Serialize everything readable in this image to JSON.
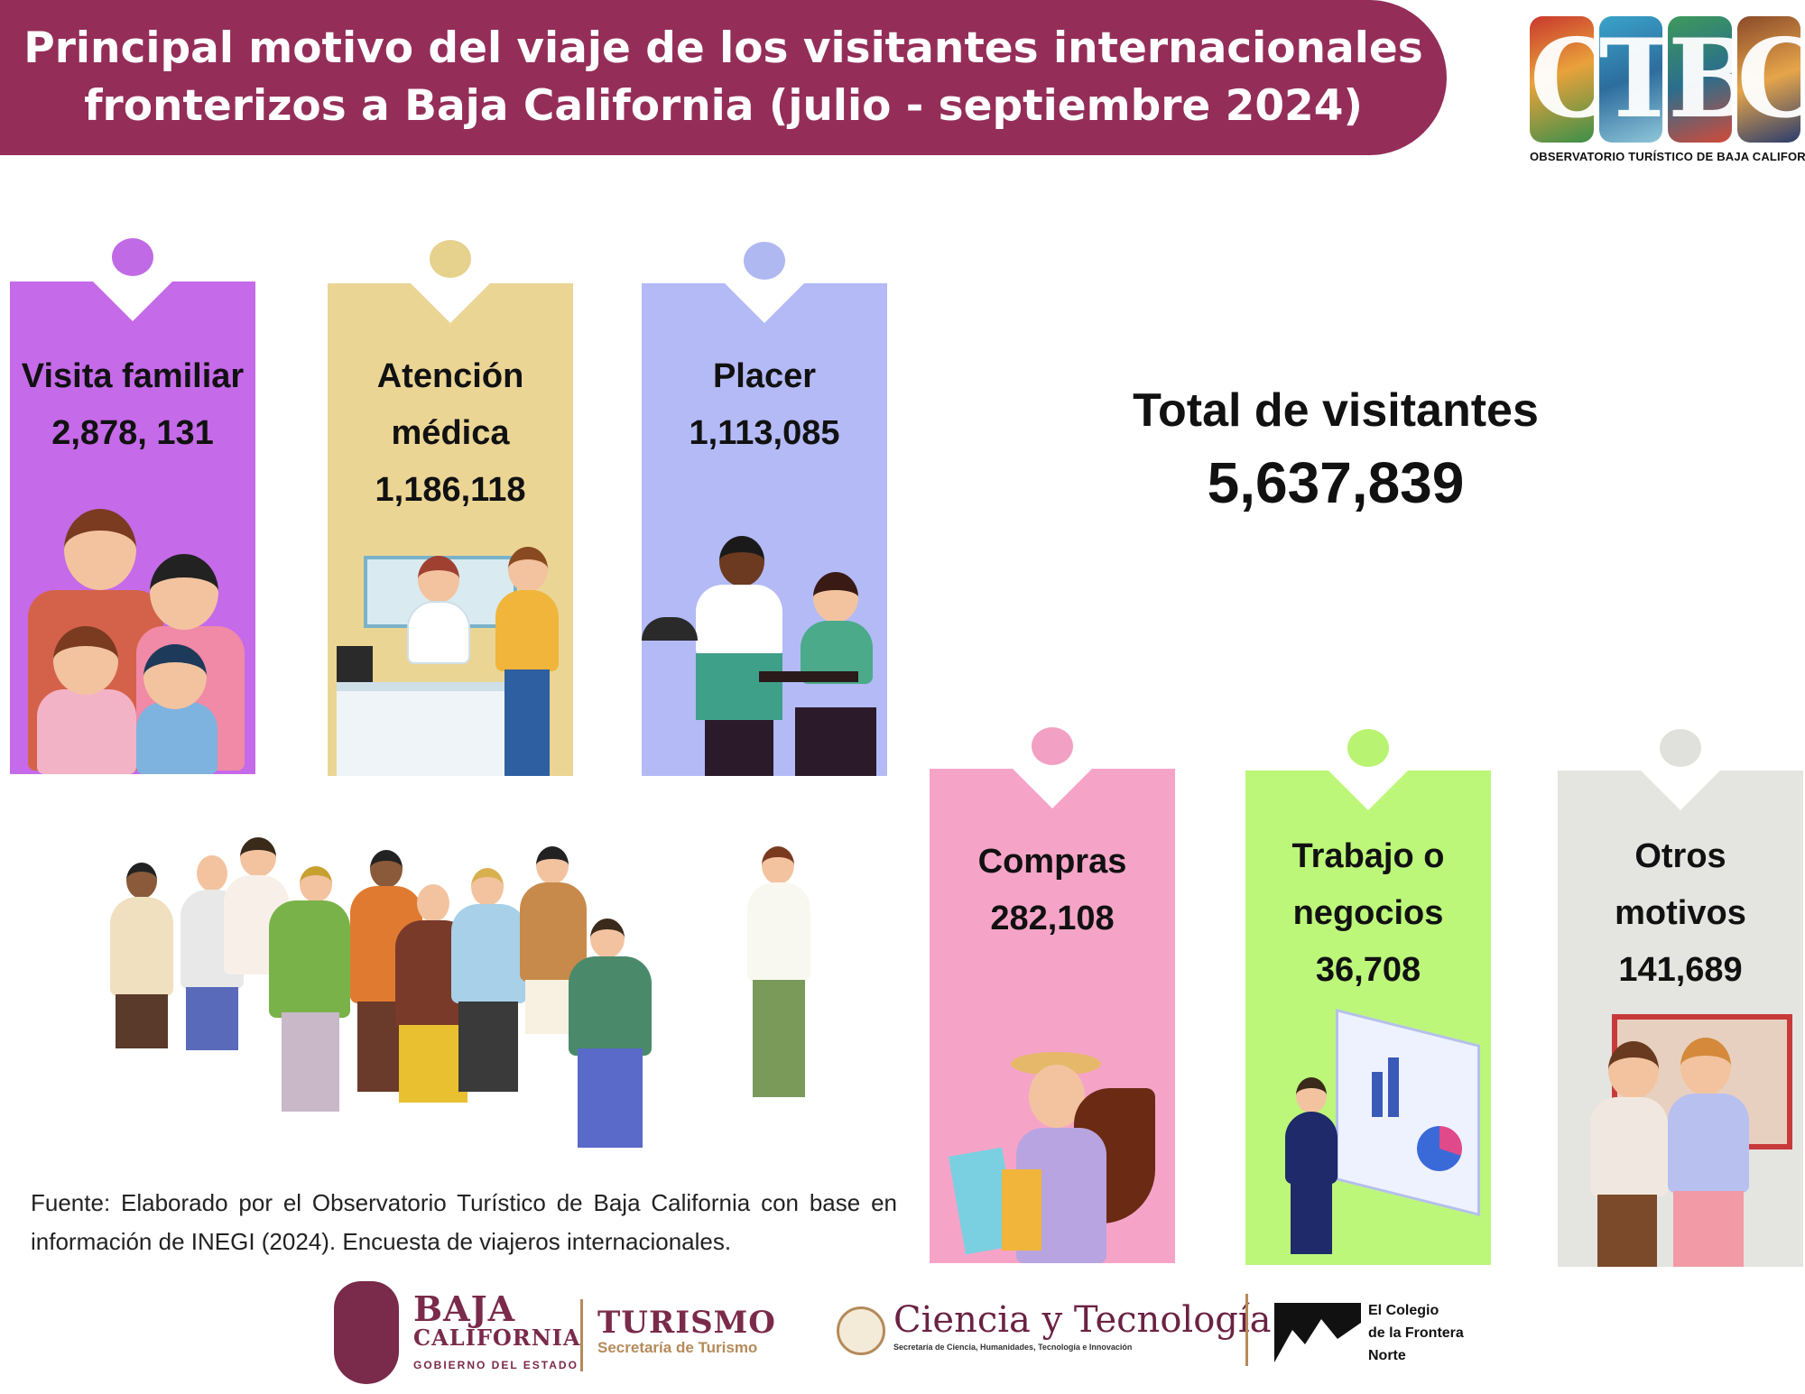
{
  "title": {
    "line1": "Principal motivo del viaje de los visitantes internacionales",
    "line2": "fronterizos a Baja California (julio - septiembre 2024)"
  },
  "logo": {
    "letters": [
      "O",
      "T",
      "B",
      "C"
    ],
    "caption": "OBSERVATORIO TURÍSTICO DE BAJA CALIFORNIA"
  },
  "categories": [
    {
      "lines": [
        "Visita familiar",
        "2,878, 131"
      ],
      "color": "#c56ae8",
      "pin_color": "#c06ae5"
    },
    {
      "lines": [
        "Atención",
        "médica",
        "1,186,118"
      ],
      "color": "#ead595",
      "pin_color": "#e6d18d"
    },
    {
      "lines": [
        "Placer",
        "1,113,085"
      ],
      "color": "#b3baf5",
      "pin_color": "#b0b8f2"
    },
    {
      "lines": [
        "Compras",
        "282,108"
      ],
      "color": "#f5a4c8",
      "pin_color": "#f2a0c4"
    },
    {
      "lines": [
        "Trabajo o",
        "negocios",
        "36,708"
      ],
      "color": "#bcf77a",
      "pin_color": "#b8f472"
    },
    {
      "lines": [
        "Otros",
        "motivos",
        "141,689"
      ],
      "color": "#e4e4e1",
      "pin_color": "#e0e0dd"
    }
  ],
  "total": {
    "label": "Total de visitantes",
    "value": "5,637,839"
  },
  "source": "Fuente: Elaborado por el Observatorio Turístico de Baja California con base en información de INEGI (2024). Encuesta de viajeros internacionales.",
  "footer": {
    "bc_line1": "BAJA",
    "bc_line2": "CALIFORNIA",
    "bc_line3": "GOBIERNO DEL ESTADO",
    "turismo": "TURISMO",
    "turismo_sub": "Secretaría de Turismo",
    "cyt": "Ciencia y Tecnología",
    "cyt_sub": "Secretaría de Ciencia, Humanidades, Tecnología e Innovación",
    "colef": [
      "El Colegio",
      "de la Frontera",
      "Norte"
    ]
  }
}
